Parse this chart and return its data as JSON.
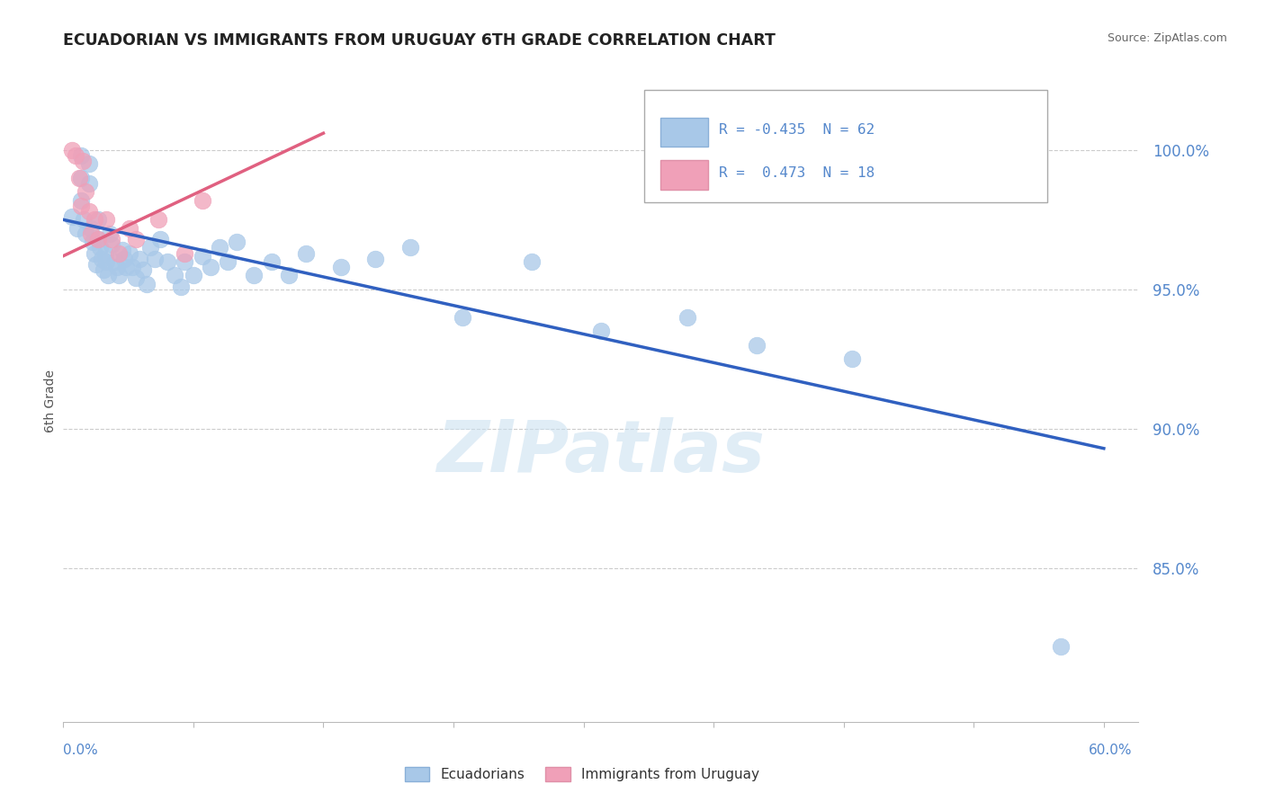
{
  "title": "ECUADORIAN VS IMMIGRANTS FROM URUGUAY 6TH GRADE CORRELATION CHART",
  "source": "Source: ZipAtlas.com",
  "ylabel": "6th Grade",
  "xlim": [
    0.0,
    0.62
  ],
  "ylim": [
    0.795,
    1.025
  ],
  "blue_R": -0.435,
  "blue_N": 62,
  "pink_R": 0.473,
  "pink_N": 18,
  "blue_color": "#a8c8e8",
  "pink_color": "#f0a0b8",
  "blue_line_color": "#3060c0",
  "pink_line_color": "#e06080",
  "title_color": "#222222",
  "source_color": "#666666",
  "grid_color": "#cccccc",
  "ytick_color": "#5588cc",
  "watermark_color": "#c8dff0",
  "legend_blue_color": "#a8c8e8",
  "legend_pink_color": "#f0a0b8",
  "blue_scatter_x": [
    0.005,
    0.008,
    0.01,
    0.01,
    0.01,
    0.012,
    0.013,
    0.015,
    0.015,
    0.016,
    0.017,
    0.018,
    0.019,
    0.02,
    0.02,
    0.021,
    0.022,
    0.023,
    0.024,
    0.025,
    0.026,
    0.027,
    0.028,
    0.03,
    0.031,
    0.032,
    0.034,
    0.035,
    0.036,
    0.038,
    0.04,
    0.042,
    0.044,
    0.046,
    0.048,
    0.05,
    0.053,
    0.056,
    0.06,
    0.064,
    0.068,
    0.07,
    0.075,
    0.08,
    0.085,
    0.09,
    0.095,
    0.1,
    0.11,
    0.12,
    0.13,
    0.14,
    0.16,
    0.18,
    0.2,
    0.23,
    0.27,
    0.31,
    0.36,
    0.4,
    0.455,
    0.575
  ],
  "blue_scatter_y": [
    0.976,
    0.972,
    0.998,
    0.99,
    0.982,
    0.975,
    0.97,
    0.995,
    0.988,
    0.972,
    0.967,
    0.963,
    0.959,
    0.975,
    0.968,
    0.965,
    0.961,
    0.957,
    0.963,
    0.96,
    0.955,
    0.97,
    0.966,
    0.96,
    0.958,
    0.955,
    0.964,
    0.961,
    0.958,
    0.963,
    0.958,
    0.954,
    0.961,
    0.957,
    0.952,
    0.965,
    0.961,
    0.968,
    0.96,
    0.955,
    0.951,
    0.96,
    0.955,
    0.962,
    0.958,
    0.965,
    0.96,
    0.967,
    0.955,
    0.96,
    0.955,
    0.963,
    0.958,
    0.961,
    0.965,
    0.94,
    0.96,
    0.935,
    0.94,
    0.93,
    0.925,
    0.822
  ],
  "pink_scatter_x": [
    0.005,
    0.007,
    0.009,
    0.01,
    0.011,
    0.013,
    0.015,
    0.016,
    0.018,
    0.02,
    0.025,
    0.028,
    0.032,
    0.038,
    0.042,
    0.055,
    0.07,
    0.08
  ],
  "pink_scatter_y": [
    1.0,
    0.998,
    0.99,
    0.98,
    0.996,
    0.985,
    0.978,
    0.97,
    0.975,
    0.968,
    0.975,
    0.968,
    0.963,
    0.972,
    0.968,
    0.975,
    0.963,
    0.982
  ],
  "blue_trend_x": [
    0.0,
    0.6
  ],
  "blue_trend_y": [
    0.975,
    0.893
  ],
  "pink_trend_x": [
    0.0,
    0.15
  ],
  "pink_trend_y": [
    0.962,
    1.006
  ],
  "watermark_text": "ZIPatlas",
  "legend_label_blue": "Ecuadorians",
  "legend_label_pink": "Immigrants from Uruguay"
}
